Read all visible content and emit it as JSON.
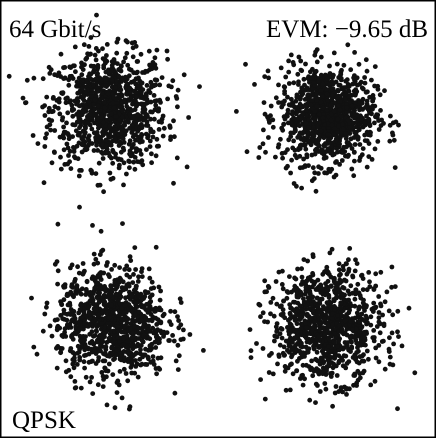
{
  "chart_data": {
    "type": "scatter",
    "bitrate_label": "64 Gbit/s",
    "evm_label": "EVM: −9.65 dB",
    "modulation_label": "QPSK",
    "xlim": [
      -1.9,
      1.9
    ],
    "ylim": [
      -1.9,
      1.9
    ],
    "grid": false,
    "symbol_count": 4000,
    "clusters": [
      {
        "name": "",
        "cx": -0.95,
        "cy": 0.95,
        "sigma": 0.25
      },
      {
        "name": "",
        "cx": 0.95,
        "cy": 0.9,
        "sigma": 0.21
      },
      {
        "name": "",
        "cx": -0.92,
        "cy": -0.9,
        "sigma": 0.24
      },
      {
        "name": "",
        "cx": 0.95,
        "cy": -0.92,
        "sigma": 0.24
      }
    ],
    "colors": {
      "points": "#111111",
      "frame": "#000000",
      "background": "#ffffff"
    }
  }
}
